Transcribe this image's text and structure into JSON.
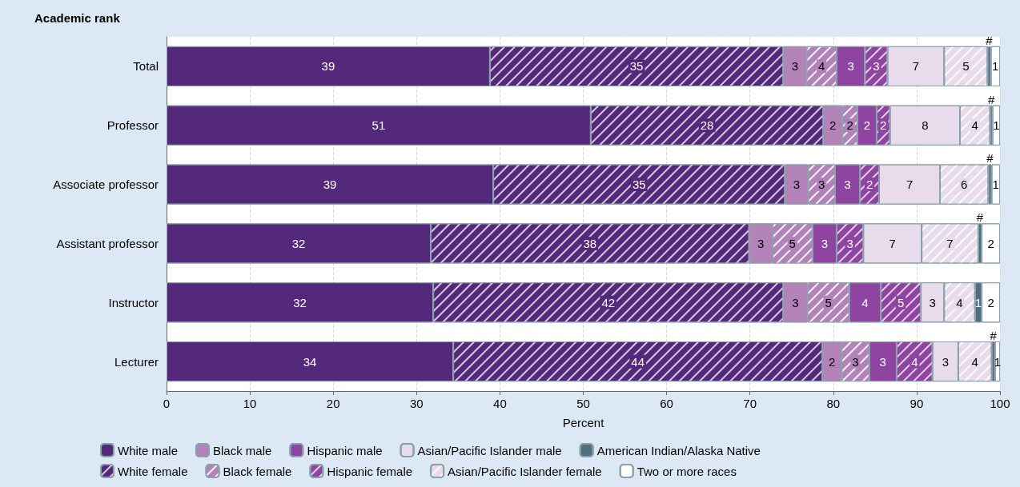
{
  "chart_data": {
    "type": "bar",
    "orientation": "horizontal",
    "stacked": true,
    "ylabel": "Academic rank",
    "xlabel": "Percent",
    "categories": [
      "Total",
      "Professor",
      "Associate professor",
      "Assistant professor",
      "Instructor",
      "Lecturer"
    ],
    "xlim": [
      0,
      100
    ],
    "xticks": [
      0,
      10,
      20,
      30,
      40,
      50,
      60,
      70,
      80,
      90,
      100
    ],
    "grid": "x",
    "legend": "bottom",
    "series": [
      {
        "name": "White male",
        "color": "#54287a",
        "values": [
          38.8,
          50.9,
          39.2,
          31.7,
          32.0,
          34.4
        ],
        "value_labels": [
          "39",
          "51",
          "39",
          "32",
          "32",
          "34"
        ]
      },
      {
        "name": "White female",
        "color": "#54287a",
        "values": [
          35.2,
          27.9,
          35.0,
          38.2,
          42.0,
          44.3
        ],
        "value_labels": [
          "35",
          "28",
          "35",
          "38",
          "42",
          "44"
        ]
      },
      {
        "name": "Black male",
        "color": "#b382b8",
        "values": [
          2.8,
          2.3,
          2.8,
          2.8,
          2.9,
          2.3
        ],
        "value_labels": [
          "3",
          "2",
          "3",
          "3",
          "3",
          "2"
        ]
      },
      {
        "name": "Black female",
        "color": "#b382b8",
        "values": [
          3.6,
          1.8,
          3.2,
          4.8,
          5.0,
          3.3
        ],
        "value_labels": [
          "4",
          "2",
          "3",
          "5",
          "5",
          "3"
        ]
      },
      {
        "name": "Hispanic male",
        "color": "#8e44a0",
        "values": [
          3.4,
          2.3,
          3.0,
          2.9,
          3.8,
          3.3
        ],
        "value_labels": [
          "3",
          "2",
          "3",
          "3",
          "4",
          "3"
        ]
      },
      {
        "name": "Hispanic female",
        "color": "#8e44a0",
        "values": [
          2.7,
          1.6,
          2.3,
          3.2,
          4.8,
          4.3
        ],
        "value_labels": [
          "3",
          "2",
          "2",
          "3",
          "5",
          "4"
        ]
      },
      {
        "name": "Asian/Pacific Islander male",
        "color": "#e8dcec",
        "values": [
          6.8,
          8.4,
          7.3,
          7.0,
          2.8,
          3.1
        ],
        "value_labels": [
          "7",
          "8",
          "7",
          "7",
          "3",
          "3"
        ]
      },
      {
        "name": "Asian/Pacific Islander female",
        "color": "#e8dcec",
        "values": [
          5.2,
          3.6,
          5.8,
          6.8,
          3.7,
          4.0
        ],
        "value_labels": [
          "5",
          "4",
          "6",
          "7",
          "4",
          "4"
        ]
      },
      {
        "name": "American Indian/Alaska Native",
        "color": "#4f6e7e",
        "values": [
          0.4,
          0.3,
          0.4,
          0.4,
          0.8,
          0.4
        ],
        "value_labels": [
          "#",
          "#",
          "#",
          "#",
          "1",
          "#"
        ]
      },
      {
        "name": "Two or more races",
        "color": "#ffffff",
        "values": [
          1.1,
          0.9,
          1.0,
          2.2,
          2.2,
          0.6
        ],
        "value_labels": [
          "1",
          "1",
          "1",
          "2",
          "2",
          "1"
        ]
      }
    ]
  }
}
